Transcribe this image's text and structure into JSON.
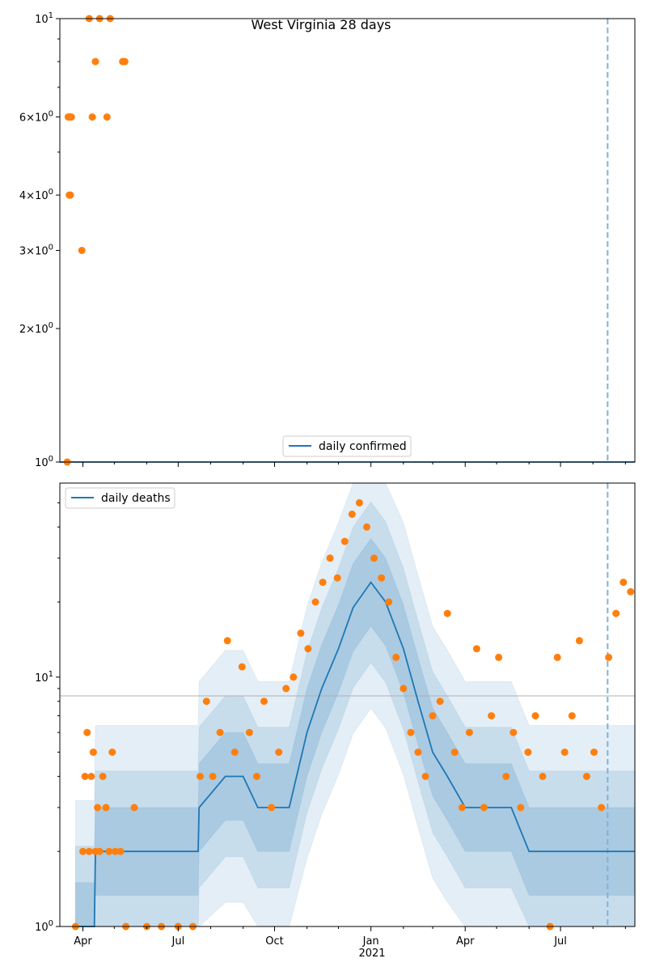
{
  "chart_data": [
    {
      "type": "scatter",
      "title": "West Virginia 28 days",
      "yscale": "log",
      "ylim": [
        1,
        10
      ],
      "xlim": [
        "2020-03-10",
        "2021-09-10"
      ],
      "grid": false,
      "legend_position": "lower center",
      "series": [
        {
          "name": "daily confirmed",
          "kind": "line",
          "color": "#1f77b4",
          "x": [
            "2020-03-10",
            "2021-09-10"
          ],
          "y": [
            1,
            1
          ]
        },
        {
          "name": "",
          "kind": "points",
          "color": "#ff7f0e",
          "x": [
            "2020-03-17",
            "2020-03-18",
            "2020-03-19",
            "2020-03-20",
            "2020-03-21",
            "2020-03-19",
            "2020-03-20",
            "2020-03-31",
            "2020-04-07",
            "2020-04-10",
            "2020-04-13",
            "2020-04-17",
            "2020-04-24",
            "2020-04-27",
            "2020-05-09",
            "2020-05-10",
            "2020-05-11"
          ],
          "y": [
            1,
            6,
            6,
            6,
            6,
            4,
            4,
            3,
            10,
            6,
            8,
            10,
            6,
            10,
            8,
            8,
            8
          ]
        }
      ],
      "reference_line": {
        "x": "2021-08-15",
        "style": "dashed",
        "color": "#7fb3d5"
      },
      "yticks": [
        "10^1",
        "6 × 10^0",
        "4 × 10^0",
        "3 × 10^0",
        "2 × 10^0",
        "10^0"
      ]
    },
    {
      "type": "scatter",
      "yscale": "log",
      "ylim": [
        1,
        60
      ],
      "xlim": [
        "2020-03-10",
        "2021-09-10"
      ],
      "grid": "y-major",
      "legend_position": "upper left",
      "series": [
        {
          "name": "daily deaths",
          "kind": "line",
          "color": "#1f77b4",
          "x": [
            "2020-03-25",
            "2020-04-12",
            "2020-04-13",
            "2020-07-20",
            "2020-07-21",
            "2020-08-15",
            "2020-09-01",
            "2020-09-15",
            "2020-10-01",
            "2020-10-15",
            "2020-11-01",
            "2020-11-15",
            "2020-12-01",
            "2020-12-15",
            "2021-01-01",
            "2021-01-15",
            "2021-02-01",
            "2021-02-15",
            "2021-03-01",
            "2021-03-15",
            "2021-04-01",
            "2021-04-15",
            "2021-05-01",
            "2021-05-15",
            "2021-06-01",
            "2021-06-15",
            "2021-07-01",
            "2021-08-01",
            "2021-09-10"
          ],
          "y": [
            1,
            1,
            2,
            2,
            3,
            4,
            4,
            3,
            3,
            3,
            6,
            9,
            13,
            19,
            24,
            20,
            13,
            8,
            5,
            4,
            3,
            3,
            3,
            3,
            2,
            2,
            2,
            2,
            2
          ]
        },
        {
          "name": "",
          "kind": "points",
          "color": "#ff7f0e",
          "x": [
            "2020-03-25",
            "2020-04-01",
            "2020-04-03",
            "2020-04-05",
            "2020-04-07",
            "2020-04-09",
            "2020-04-11",
            "2020-04-13",
            "2020-04-15",
            "2020-04-17",
            "2020-04-20",
            "2020-04-23",
            "2020-04-26",
            "2020-04-29",
            "2020-05-02",
            "2020-05-07",
            "2020-05-12",
            "2020-05-20",
            "2020-06-01",
            "2020-06-15",
            "2020-07-01",
            "2020-07-15",
            "2020-07-22",
            "2020-07-28",
            "2020-08-03",
            "2020-08-10",
            "2020-08-17",
            "2020-08-24",
            "2020-08-31",
            "2020-09-07",
            "2020-09-14",
            "2020-09-21",
            "2020-09-28",
            "2020-10-05",
            "2020-10-12",
            "2020-10-19",
            "2020-10-26",
            "2020-11-02",
            "2020-11-09",
            "2020-11-16",
            "2020-11-23",
            "2020-11-30",
            "2020-12-07",
            "2020-12-14",
            "2020-12-21",
            "2020-12-28",
            "2021-01-04",
            "2021-01-11",
            "2021-01-18",
            "2021-01-25",
            "2021-02-01",
            "2021-02-08",
            "2021-02-15",
            "2021-02-22",
            "2021-03-01",
            "2021-03-08",
            "2021-03-15",
            "2021-03-22",
            "2021-03-29",
            "2021-04-05",
            "2021-04-12",
            "2021-04-19",
            "2021-04-26",
            "2021-05-03",
            "2021-05-10",
            "2021-05-17",
            "2021-05-24",
            "2021-05-31",
            "2021-06-07",
            "2021-06-14",
            "2021-06-21",
            "2021-06-28",
            "2021-07-05",
            "2021-07-12",
            "2021-07-19",
            "2021-07-26",
            "2021-08-02",
            "2021-08-09",
            "2021-08-16",
            "2021-08-23",
            "2021-08-30",
            "2021-09-06"
          ],
          "y": [
            1,
            2,
            4,
            6,
            2,
            4,
            5,
            2,
            3,
            2,
            4,
            3,
            2,
            5,
            2,
            2,
            1,
            3,
            1,
            1,
            1,
            1,
            4,
            8,
            4,
            6,
            14,
            5,
            11,
            6,
            4,
            8,
            3,
            5,
            9,
            10,
            15,
            13,
            20,
            24,
            30,
            25,
            35,
            45,
            50,
            40,
            30,
            25,
            20,
            12,
            9,
            6,
            5,
            4,
            7,
            8,
            18,
            5,
            3,
            6,
            13,
            3,
            7,
            12,
            4,
            6,
            3,
            5,
            7,
            4,
            1,
            12,
            5,
            7,
            14,
            4,
            5,
            3,
            12,
            18,
            24,
            22
          ]
        }
      ],
      "reference_line": {
        "x": "2021-08-15",
        "style": "dashed",
        "color": "#7fb3d5"
      },
      "yticks": [
        "10^1",
        "10^0"
      ],
      "xticks": [
        "Apr",
        "Jul",
        "Oct",
        "Jan",
        "Apr",
        "Jul"
      ],
      "xtick_year_label": "2021"
    }
  ]
}
